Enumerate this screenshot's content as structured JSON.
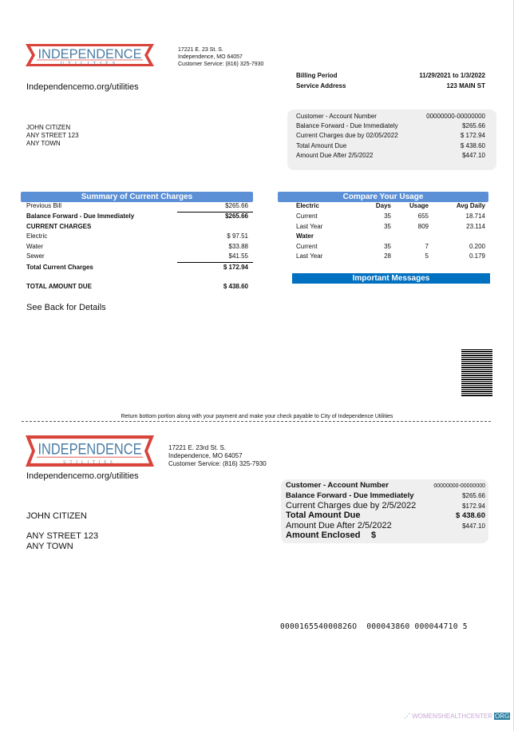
{
  "logo": {
    "title": "INDEPENDENCE",
    "subtitle": "UTILITIES",
    "colors": {
      "red": "#d9443b",
      "blue": "#4a7ca6"
    }
  },
  "header": {
    "address1": "17221 E. 23 St. S.",
    "address2": "Independence, MO 64057",
    "phone": "Customer Service: (816) 325-7930",
    "website": "Independencemo.org/utilities"
  },
  "billing": {
    "period_label": "Billing Period",
    "period_value": "11/29/2021 to 1/3/2022",
    "service_label": "Service Address",
    "service_value": "123 MAIN ST"
  },
  "customer": {
    "name": "JOHN CITIZEN",
    "street": "ANY STREET 123",
    "town": "ANY TOWN"
  },
  "account_box": {
    "rows": [
      {
        "label": "Customer - Account Number",
        "value": "00000000-00000000"
      },
      {
        "label": "Balance Forward - Due Immediately",
        "value": "$265.66"
      },
      {
        "label": "Current Charges due by 02/05/2022",
        "value": "$ 172.94"
      },
      {
        "label": "Total Amount Due",
        "value": "$ 438.60"
      },
      {
        "label": "Amount Due After 2/5/2022",
        "value": "$447.10"
      }
    ]
  },
  "summary": {
    "title": "Summary of Current Charges",
    "color": "#5b8fd6",
    "previous_bill": {
      "label": "Previous Bill",
      "value": "$265.66"
    },
    "balance_forward": {
      "label": "Balance Forward - Due Immediately",
      "value": "$265.66"
    },
    "current_charges_label": "CURRENT CHARGES",
    "charges": [
      {
        "label": "Electric",
        "value": "$ 97.51"
      },
      {
        "label": "Water",
        "value": "$33.88"
      },
      {
        "label": "Sewer",
        "value": "$41.55"
      }
    ],
    "total_current": {
      "label": "Total Current Charges",
      "value": "$ 172.94"
    },
    "total_due": {
      "label": "TOTAL AMOUNT DUE",
      "value": "$ 438.60"
    },
    "see_back": "See Back for Details"
  },
  "usage": {
    "title": "Compare Your Usage",
    "columns": [
      "Days",
      "Usage",
      "Avg Daily"
    ],
    "electric": {
      "label": "Electric",
      "rows": [
        {
          "label": "Current",
          "days": "35",
          "usage": "655",
          "avg": "18.714"
        },
        {
          "label": "Last Year",
          "days": "35",
          "usage": "809",
          "avg": "23.114"
        }
      ]
    },
    "water": {
      "label": "Water",
      "rows": [
        {
          "label": "Current",
          "days": "35",
          "usage": "7",
          "avg": "0.200"
        },
        {
          "label": "Last Year",
          "days": "28",
          "usage": "5",
          "avg": "0.179"
        }
      ]
    }
  },
  "messages": {
    "title": "Important Messages",
    "color": "#0070c0"
  },
  "stub": {
    "instruction": "Return bottom portion along with your payment and make your check payable to City of Independence Utilities",
    "address1": "17221 E. 23rd St. S.",
    "address2": "Independence, MO 64057",
    "phone": "Customer Service: (816) 325-7930",
    "website": "Independencemo.org/utilities",
    "rows": [
      {
        "label": "Customer - Account Number",
        "value": "00000000-00000000"
      },
      {
        "label": "Balance Forward - Due Immediately",
        "value": "$265.66"
      },
      {
        "label": "Current Charges due by 2/5/2022",
        "value": "$172.94"
      },
      {
        "label": "Total Amount Due",
        "value": "$ 438.60"
      },
      {
        "label": "Amount Due After 2/5/2022",
        "value": "$447.10"
      }
    ],
    "enclosed_label": "Amount Enclosed",
    "enclosed_value": "$",
    "micr": "000016554000826O  000043860 000044710 5"
  },
  "watermark": {
    "text": "WOMENSHEALTHCENTER",
    "suffix": "ORG"
  }
}
